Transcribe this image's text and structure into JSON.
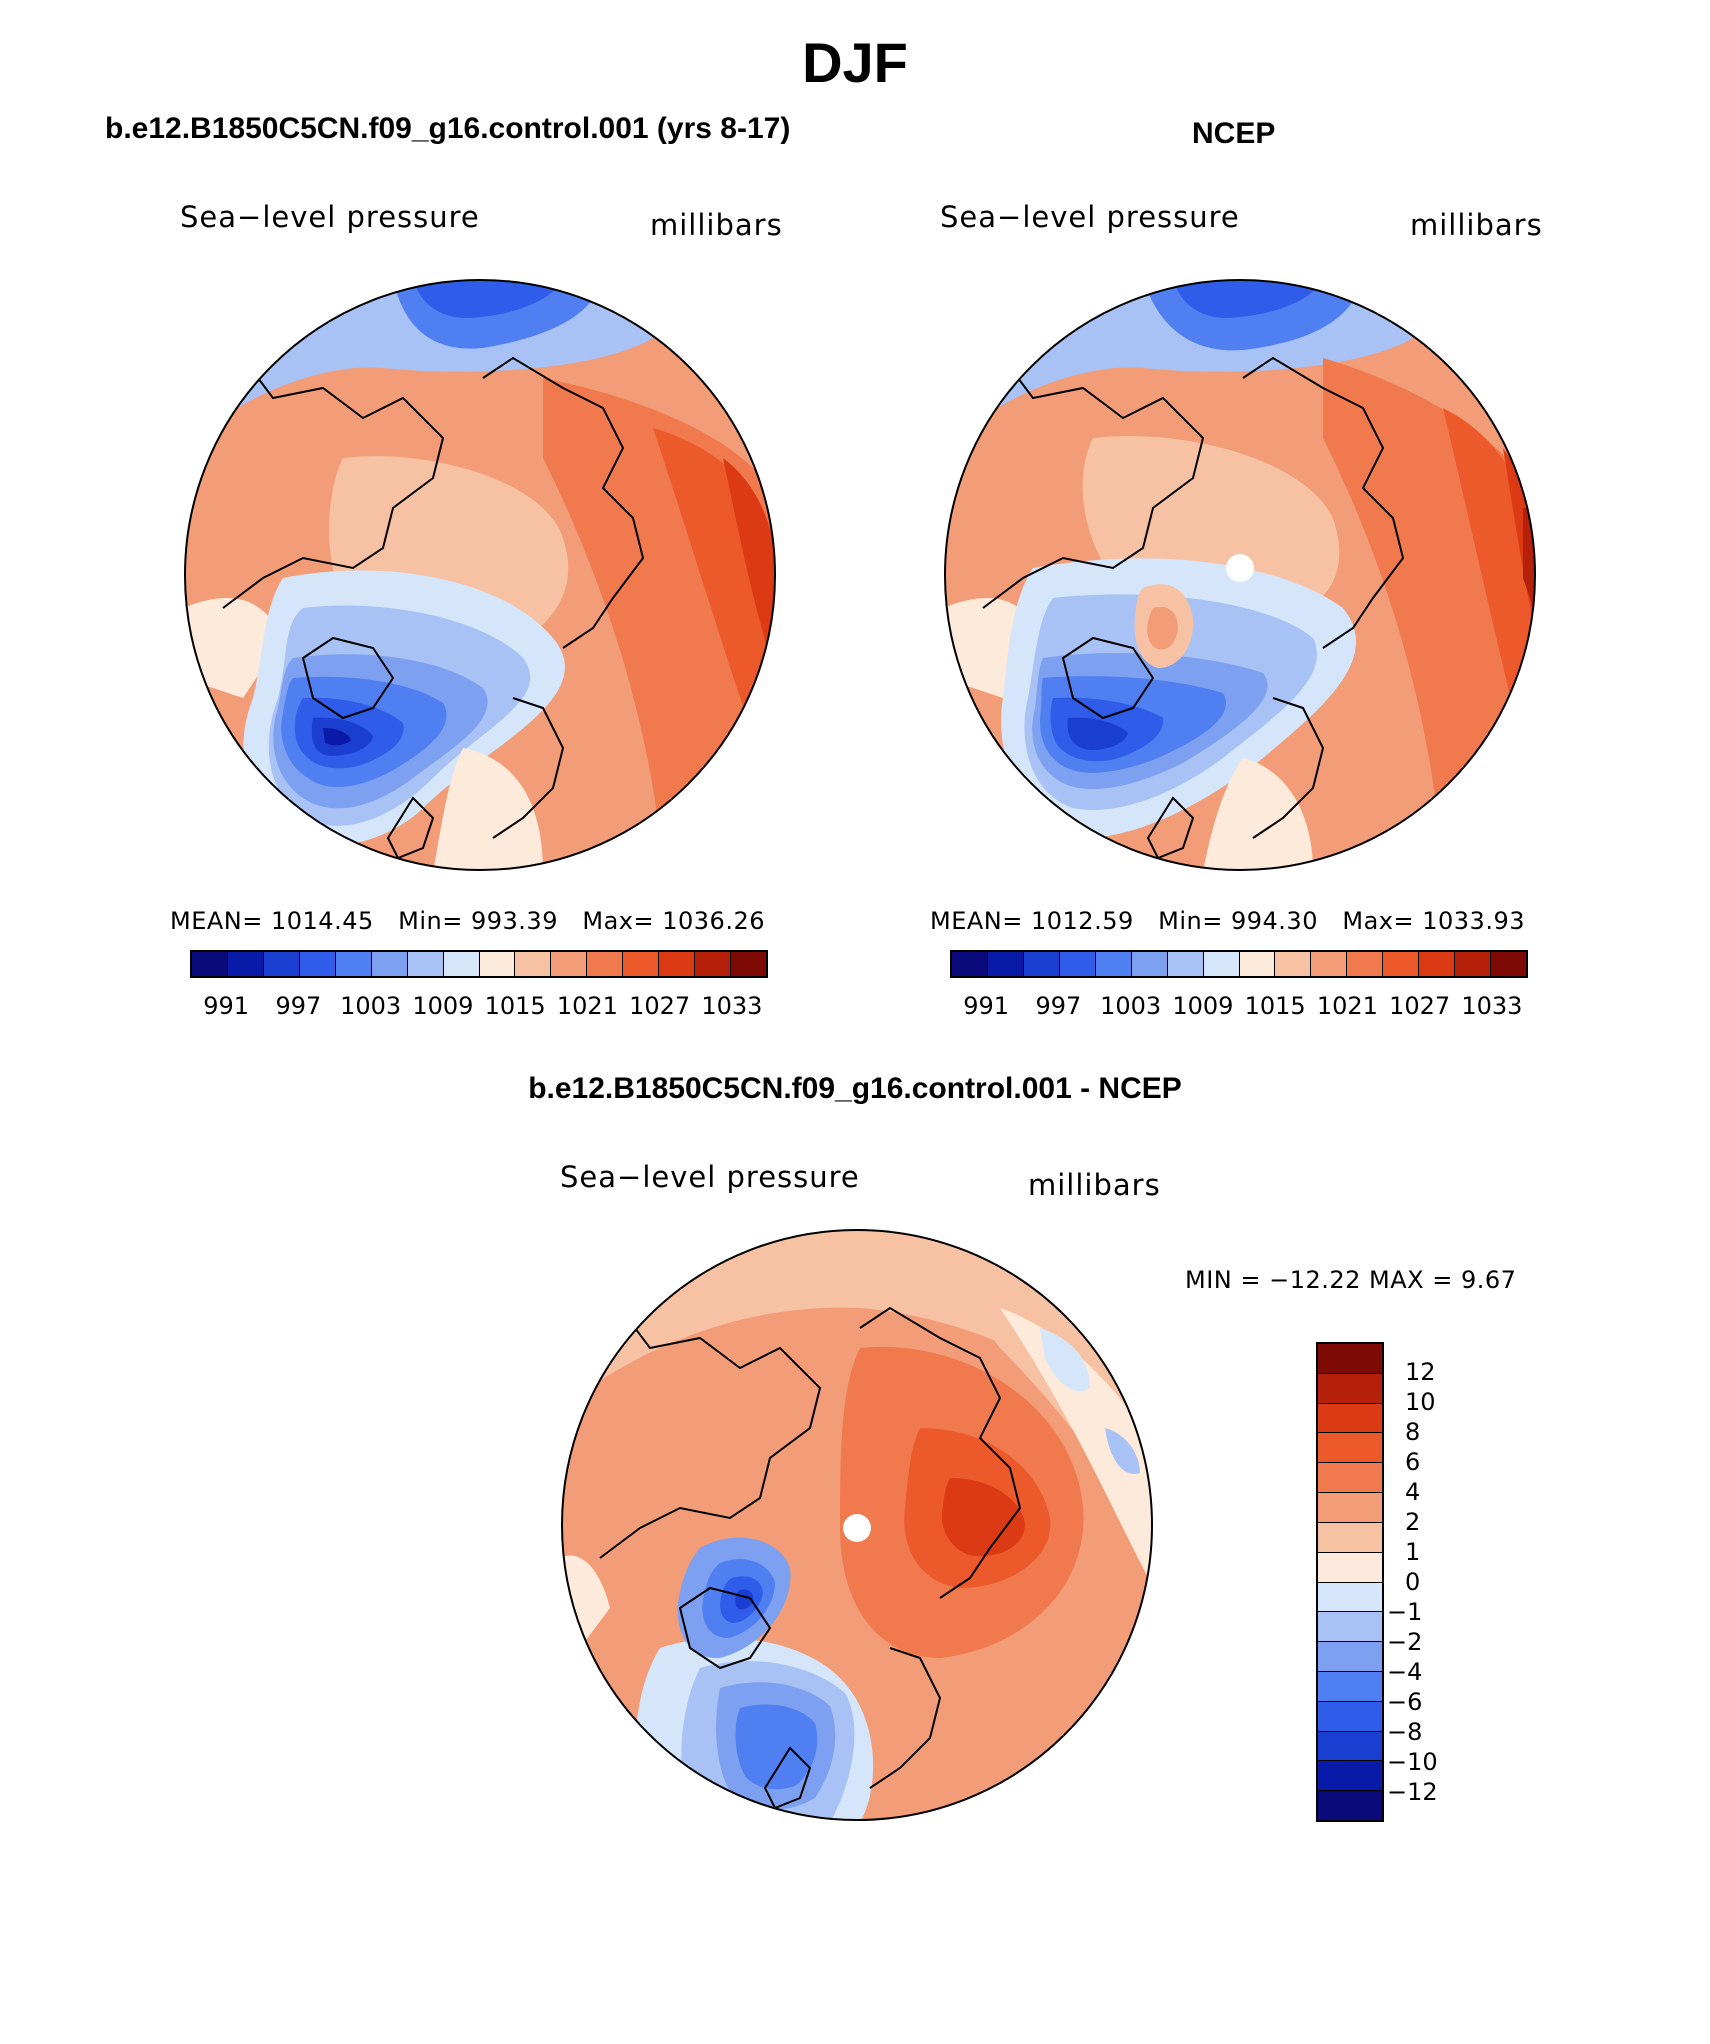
{
  "title": "DJF",
  "panels": {
    "model": {
      "header": "b.e12.B1850C5CN.f09_g16.control.001 (yrs 8-17)",
      "variable": "Sea−level pressure",
      "units": "millibars",
      "mean_label": "MEAN=",
      "mean": "1014.45",
      "min_label": "Min=",
      "min": "993.39",
      "max_label": "Max=",
      "max": "1036.26"
    },
    "obs": {
      "header": "NCEP",
      "variable": "Sea−level pressure",
      "units": "millibars",
      "mean_label": "MEAN=",
      "mean": "1012.59",
      "min_label": "Min=",
      "min": "994.30",
      "max_label": "Max=",
      "max": "1033.93"
    },
    "diff": {
      "header": "b.e12.B1850C5CN.f09_g16.control.001 - NCEP",
      "variable": "Sea−level pressure",
      "units": "millibars",
      "minmax_label": "MIN = −12.22  MAX =    9.67"
    }
  },
  "abs_colorbar": {
    "tick_labels": [
      "991",
      "997",
      "1003",
      "1009",
      "1015",
      "1021",
      "1027",
      "1033"
    ],
    "colors": [
      "#0a0a7a",
      "#0a1aa8",
      "#1a3fd0",
      "#2f5ce8",
      "#4f7ff0",
      "#7ea0f0",
      "#a8c2f5",
      "#d6e6fa",
      "#fdeadb",
      "#f7c2a4",
      "#f29c78",
      "#f07a4e",
      "#ec5a2c",
      "#dc3a14",
      "#b4200a",
      "#7e0a06"
    ]
  },
  "diff_colorbar": {
    "tick_labels": [
      "12",
      "10",
      "8",
      "6",
      "4",
      "2",
      "1",
      "0",
      "−1",
      "−2",
      "−4",
      "−6",
      "−8",
      "−10",
      "−12"
    ],
    "colors": [
      "#7e0a06",
      "#b4200a",
      "#dc3a14",
      "#ec5a2c",
      "#f07a4e",
      "#f29c78",
      "#f7c2a4",
      "#fdeadb",
      "#d6e6fa",
      "#a8c2f5",
      "#7ea0f0",
      "#4f7ff0",
      "#2f5ce8",
      "#1a3fd0",
      "#0a1aa8",
      "#0a0a7a"
    ]
  }
}
